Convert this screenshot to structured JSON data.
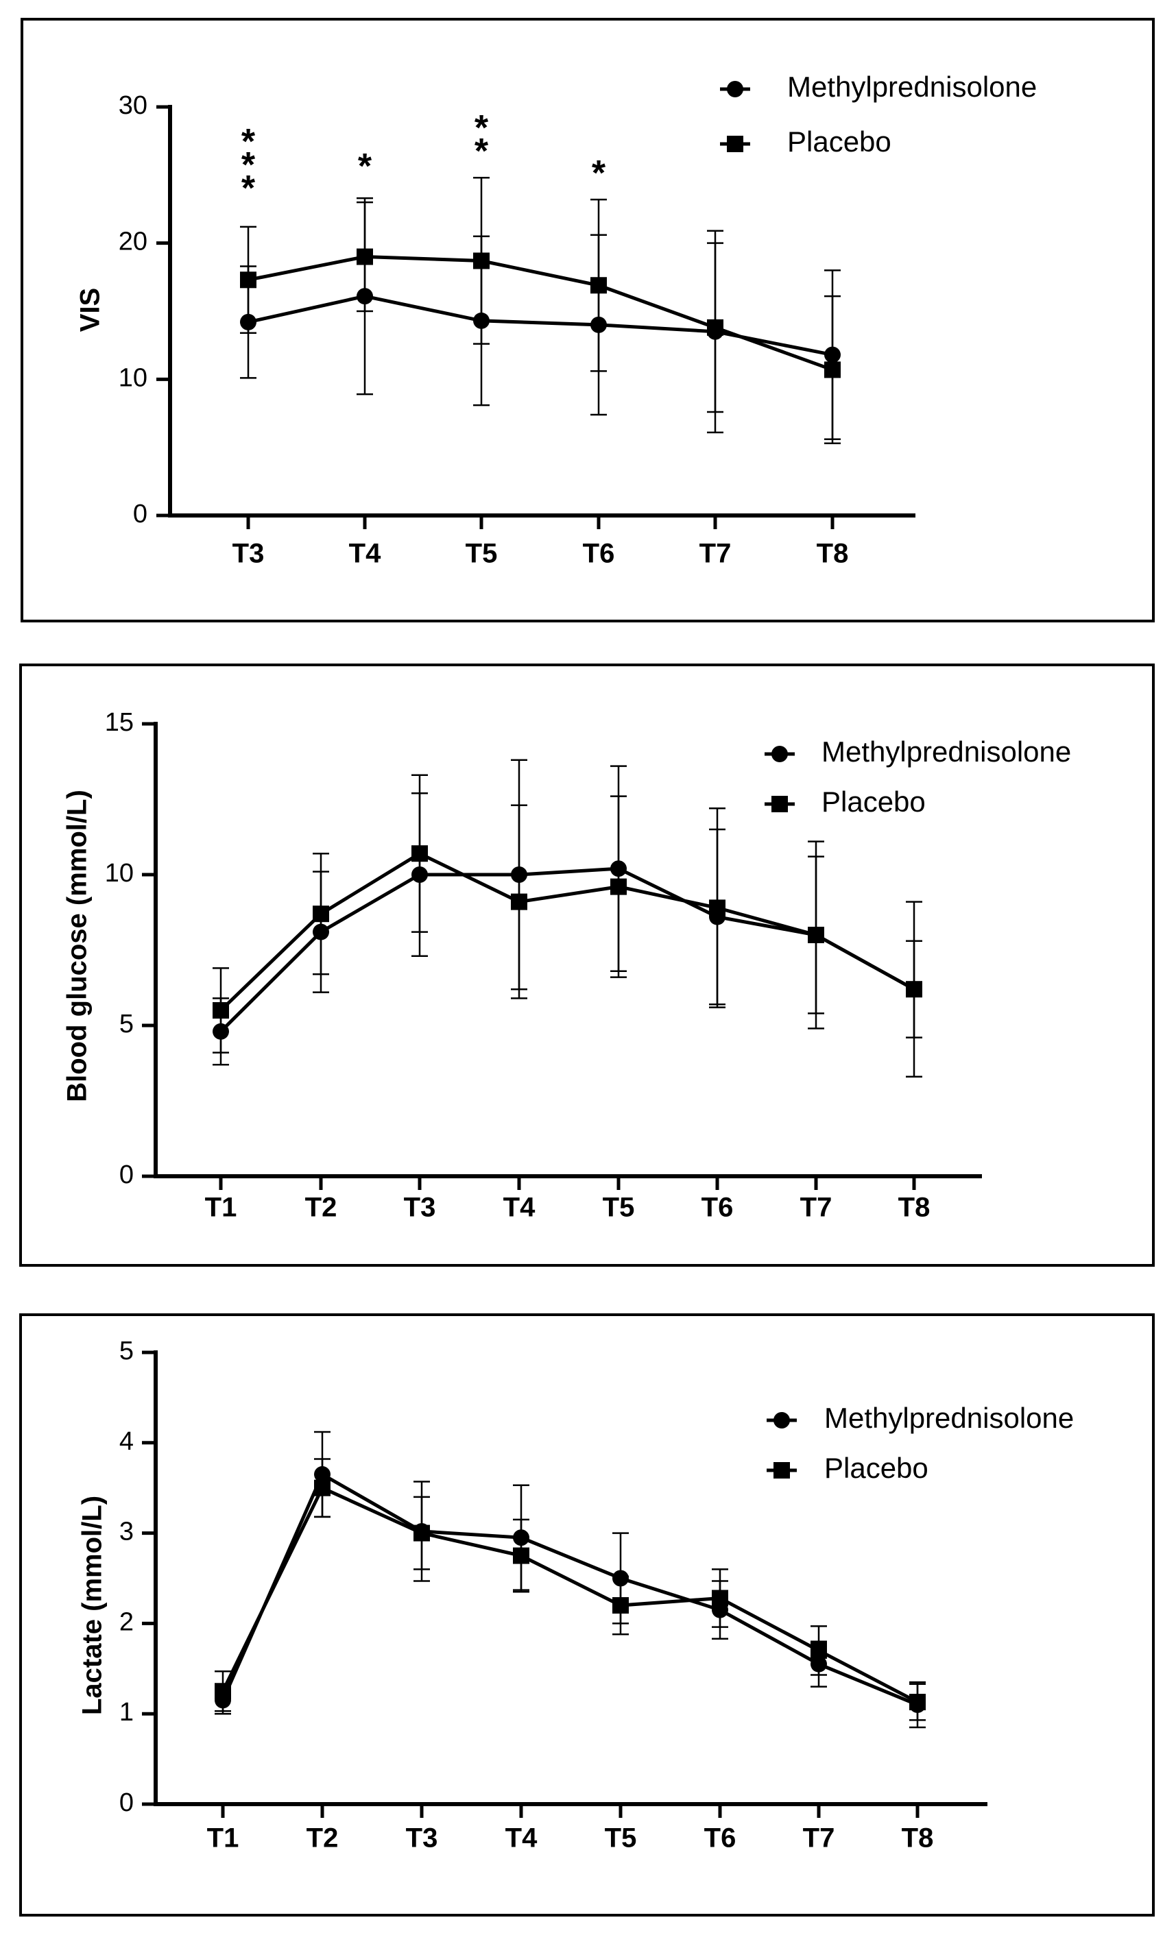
{
  "chart_data": [
    {
      "type": "line",
      "title": "",
      "xlabel": "",
      "ylabel": "VIS",
      "ylim": [
        0,
        30
      ],
      "yticks": [
        0,
        10,
        20,
        30
      ],
      "categories": [
        "T3",
        "T4",
        "T5",
        "T6",
        "T7",
        "T8"
      ],
      "series": [
        {
          "name": "Methylprednisolone",
          "marker": "circle",
          "values": [
            14.2,
            16.1,
            14.3,
            14.0,
            13.5,
            11.8
          ],
          "errors": [
            4.1,
            7.2,
            6.2,
            6.6,
            7.4,
            6.2
          ]
        },
        {
          "name": "Placebo",
          "marker": "square",
          "values": [
            17.3,
            19.0,
            18.7,
            16.9,
            13.8,
            10.7
          ],
          "errors": [
            3.9,
            4.0,
            6.1,
            6.3,
            6.2,
            5.4
          ]
        }
      ],
      "significance": [
        "***",
        "*",
        "**",
        "*",
        "",
        ""
      ],
      "legend_position": "top-right"
    },
    {
      "type": "line",
      "title": "",
      "xlabel": "",
      "ylabel": "Blood glucose (mmol/L)",
      "ylim": [
        0,
        15
      ],
      "yticks": [
        0,
        5,
        10,
        15
      ],
      "categories": [
        "T1",
        "T2",
        "T3",
        "T4",
        "T5",
        "T6",
        "T7",
        "T8"
      ],
      "series": [
        {
          "name": "Methylprednisolone",
          "marker": "circle",
          "values": [
            4.8,
            8.1,
            10.0,
            10.0,
            10.2,
            8.6,
            8.0,
            6.2
          ],
          "errors": [
            1.1,
            2.0,
            2.7,
            3.8,
            3.4,
            2.9,
            3.1,
            2.9
          ]
        },
        {
          "name": "Placebo",
          "marker": "square",
          "values": [
            5.5,
            8.7,
            10.7,
            9.1,
            9.6,
            8.9,
            8.0,
            6.2
          ],
          "errors": [
            1.4,
            2.0,
            2.6,
            3.2,
            3.0,
            3.3,
            2.6,
            1.6
          ]
        }
      ],
      "legend_position": "top-right"
    },
    {
      "type": "line",
      "title": "",
      "xlabel": "",
      "ylabel": "Lactate (mmol/L)",
      "ylim": [
        0,
        5
      ],
      "yticks": [
        0,
        1,
        2,
        3,
        4,
        5
      ],
      "categories": [
        "T1",
        "T2",
        "T3",
        "T4",
        "T5",
        "T6",
        "T7",
        "T8"
      ],
      "series": [
        {
          "name": "Methylprednisolone",
          "marker": "circle",
          "values": [
            1.15,
            3.65,
            3.02,
            2.95,
            2.5,
            2.15,
            1.55,
            1.1
          ],
          "errors": [
            0.15,
            0.47,
            0.55,
            0.58,
            0.5,
            0.32,
            0.25,
            0.25
          ]
        },
        {
          "name": "Placebo",
          "marker": "square",
          "values": [
            1.25,
            3.5,
            3.0,
            2.75,
            2.2,
            2.28,
            1.7,
            1.13
          ],
          "errors": [
            0.22,
            0.32,
            0.4,
            0.4,
            0.32,
            0.32,
            0.27,
            0.2
          ]
        }
      ],
      "legend_position": "top-right"
    }
  ]
}
